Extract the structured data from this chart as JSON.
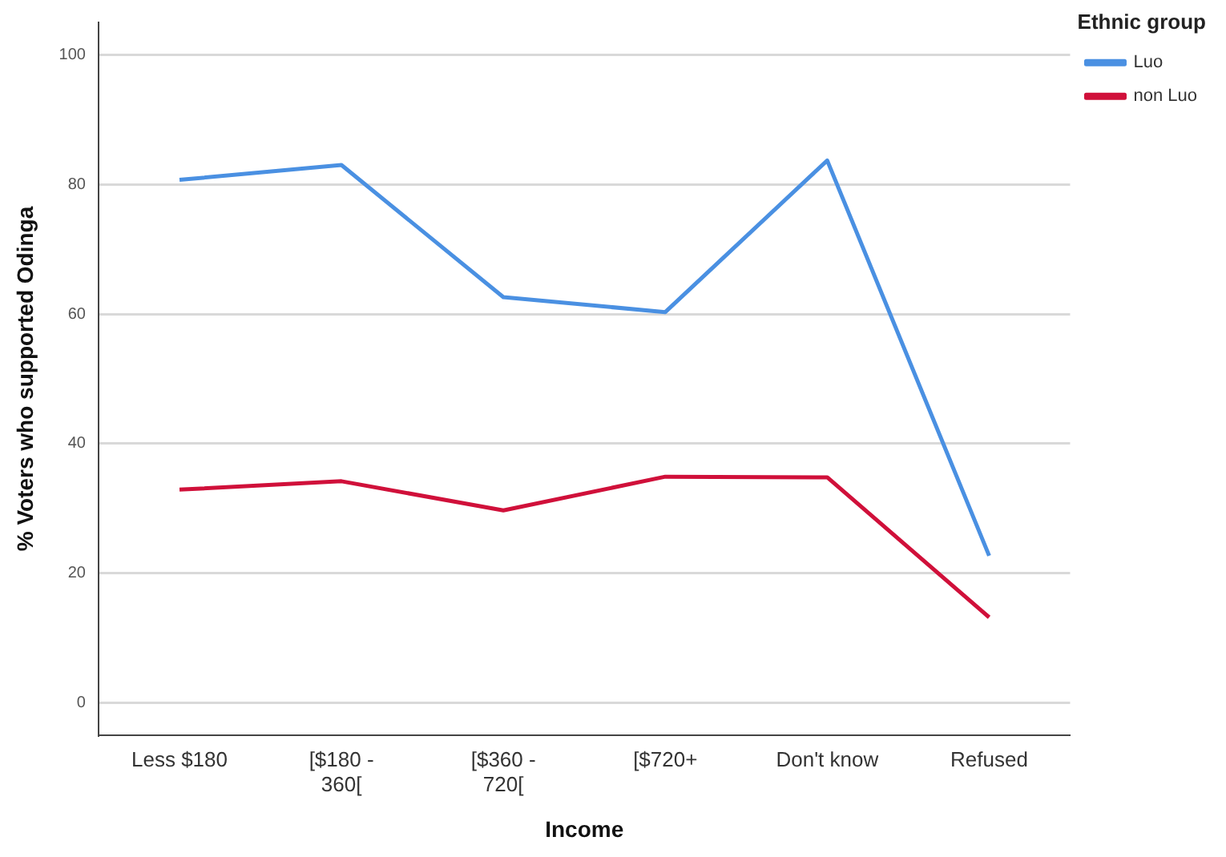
{
  "chart_data": {
    "type": "line",
    "xlabel": "Income",
    "ylabel": "% Voters who supported Odinga",
    "legend_title": "Ethnic group",
    "categories": [
      "Less $180",
      "[$180 - 360[",
      "[$360 - 720[",
      "[$720+",
      "Don't know",
      "Refused"
    ],
    "series": [
      {
        "name": "Luo",
        "color": "#4a90e2",
        "values": [
          80.7,
          83,
          62.6,
          60.3,
          83.7,
          22.7
        ]
      },
      {
        "name": "non Luo",
        "color": "#d0103a",
        "values": [
          32.9,
          34.2,
          29.7,
          34.9,
          34.8,
          13.2
        ]
      }
    ],
    "ylim": [
      -5,
      105
    ],
    "yticks": [
      0,
      20,
      40,
      60,
      80,
      100
    ],
    "grid": "y",
    "legend": "top right",
    "marker": "none",
    "line_style": "solid"
  }
}
